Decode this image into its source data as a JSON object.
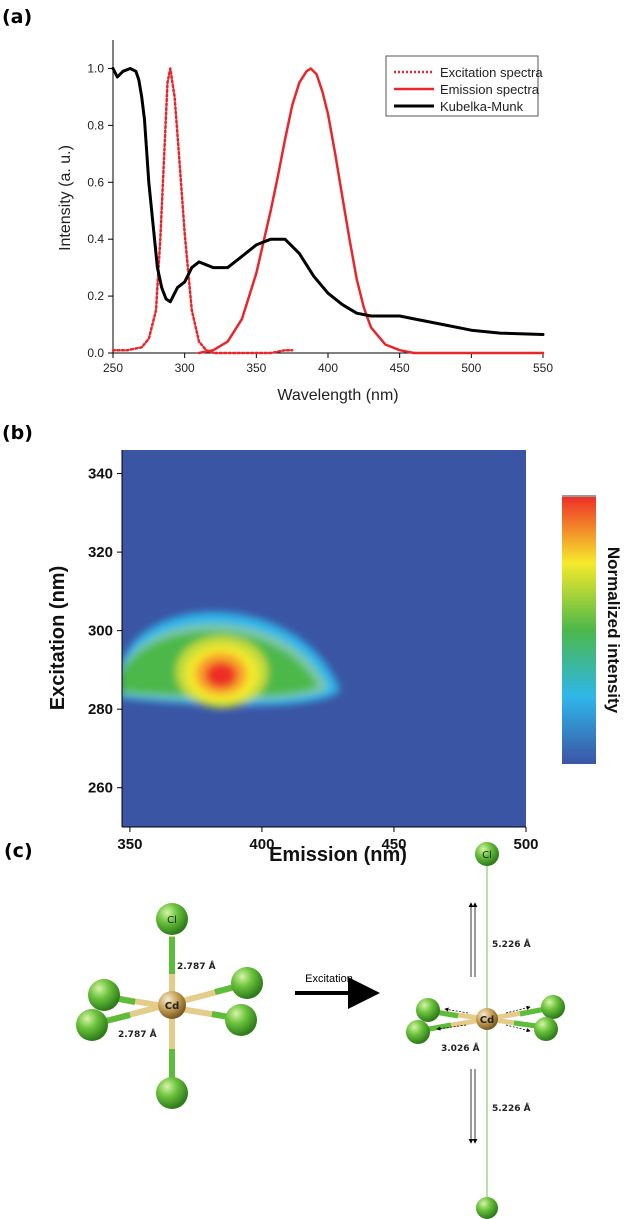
{
  "panels": {
    "a_label": "(a)",
    "b_label": "(b)",
    "c_label": "(c)"
  },
  "chart_data": [
    {
      "type": "line",
      "panel": "(a)",
      "title": "",
      "xlabel": "Wavelength (nm)",
      "ylabel": "Intensity (a. u.)",
      "xlim": [
        250,
        550
      ],
      "ylim": [
        0,
        1.1
      ],
      "xticks": [
        250,
        300,
        350,
        400,
        450,
        500,
        550
      ],
      "yticks": [
        0.0,
        0.2,
        0.4,
        0.6,
        0.8,
        1.0
      ],
      "xtick_labels": [
        "250",
        "300",
        "350",
        "400",
        "450",
        "500",
        "550"
      ],
      "ytick_labels": [
        "0.0",
        "0.2",
        "0.4",
        "0.6",
        "0.8",
        "1.0"
      ],
      "legend": "top-right",
      "grid": false,
      "series": [
        {
          "name": "Excitation spectra",
          "color": "#e8262b",
          "style": "dotted",
          "x": [
            250,
            260,
            270,
            275,
            280,
            283,
            285,
            288,
            290,
            293,
            296,
            300,
            305,
            310,
            315,
            320,
            325,
            330,
            340,
            350,
            360,
            370,
            375
          ],
          "y": [
            0.01,
            0.01,
            0.02,
            0.05,
            0.15,
            0.4,
            0.62,
            0.95,
            1.0,
            0.9,
            0.7,
            0.42,
            0.15,
            0.04,
            0.01,
            0.0,
            0.0,
            0.0,
            0.0,
            0.0,
            0.0,
            0.01,
            0.01
          ]
        },
        {
          "name": "Emission spectra",
          "color": "#e8262b",
          "style": "solid",
          "x": [
            310,
            320,
            330,
            340,
            350,
            360,
            365,
            370,
            375,
            380,
            385,
            388,
            392,
            396,
            400,
            405,
            410,
            415,
            420,
            425,
            430,
            440,
            450,
            460,
            470,
            490,
            510,
            530,
            550
          ],
          "y": [
            0.0,
            0.01,
            0.04,
            0.12,
            0.28,
            0.5,
            0.62,
            0.75,
            0.87,
            0.95,
            0.99,
            1.0,
            0.98,
            0.92,
            0.84,
            0.7,
            0.55,
            0.4,
            0.26,
            0.16,
            0.09,
            0.03,
            0.01,
            0.0,
            0.0,
            0.0,
            0.0,
            0.0,
            0.0
          ]
        },
        {
          "name": "Kubelka-Munk",
          "color": "#000000",
          "style": "solid",
          "x": [
            250,
            253,
            257,
            262,
            266,
            268,
            270,
            272,
            275,
            278,
            281,
            284,
            287,
            290,
            295,
            300,
            305,
            310,
            315,
            320,
            330,
            340,
            350,
            360,
            370,
            380,
            390,
            400,
            410,
            420,
            430,
            440,
            450,
            460,
            480,
            500,
            520,
            550
          ],
          "y": [
            1.0,
            0.97,
            0.99,
            1.0,
            0.99,
            0.96,
            0.9,
            0.82,
            0.6,
            0.45,
            0.3,
            0.23,
            0.19,
            0.18,
            0.23,
            0.25,
            0.3,
            0.32,
            0.31,
            0.3,
            0.3,
            0.34,
            0.38,
            0.4,
            0.4,
            0.35,
            0.27,
            0.21,
            0.17,
            0.14,
            0.13,
            0.13,
            0.13,
            0.12,
            0.1,
            0.08,
            0.07,
            0.065
          ]
        }
      ]
    },
    {
      "type": "heatmap",
      "panel": "(b)",
      "title": "",
      "xlabel": "Emission (nm)",
      "ylabel": "Excitation (nm)",
      "colorbar_label": "Normalized intensity",
      "xlim": [
        347,
        500
      ],
      "ylim": [
        250,
        346
      ],
      "xticks": [
        350,
        400,
        450,
        500
      ],
      "yticks": [
        260,
        280,
        300,
        320,
        340
      ],
      "xtick_labels": [
        "350",
        "400",
        "450",
        "500"
      ],
      "ytick_labels": [
        "260",
        "280",
        "300",
        "320",
        "340"
      ],
      "peak": {
        "emission": 383,
        "excitation": 290,
        "intensity": 1.0
      },
      "colormap": [
        "#3a55a4",
        "#2fb6ea",
        "#4cb84a",
        "#f6ea2b",
        "#ee2d28"
      ],
      "background_color": "#3a55a4"
    }
  ],
  "diagram": {
    "arrow_label": "Excitation",
    "left": {
      "center_atom": "Cd",
      "top_atom": "Cl",
      "axial_bond": "2.787 Å",
      "equatorial_bond": "2.787 Å"
    },
    "right": {
      "center_atom": "Cd",
      "top_atom": "Cl",
      "upper_bond": "5.226 Å",
      "lower_bond": "5.226 Å",
      "equatorial_bond": "3.026 Å"
    },
    "colors": {
      "chlorine": "#5cbd3a",
      "cadmium": "#c9a45a",
      "bond_metal": "#e4cc8a"
    }
  }
}
